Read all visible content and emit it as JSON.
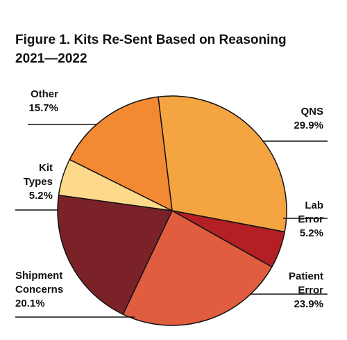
{
  "chart_data": {
    "type": "pie",
    "title": [
      "Figure 1. Kits Re-Sent Based on Reasoning",
      "2021—2022"
    ],
    "slices": [
      {
        "name": "QNS",
        "label_lines": [
          "QNS"
        ],
        "value": 29.9,
        "value_text": "29.9%",
        "color": "#f5a442"
      },
      {
        "name": "Lab Error",
        "label_lines": [
          "Lab",
          "Error"
        ],
        "value": 5.2,
        "value_text": "5.2%",
        "color": "#b31f24"
      },
      {
        "name": "Patient Error",
        "label_lines": [
          "Patient",
          "Error"
        ],
        "value": 23.9,
        "value_text": "23.9%",
        "color": "#e05d40"
      },
      {
        "name": "Shipment Concerns",
        "label_lines": [
          "Shipment",
          "Concerns"
        ],
        "value": 20.1,
        "value_text": "20.1%",
        "color": "#7b2228"
      },
      {
        "name": "Kit Types",
        "label_lines": [
          "Kit",
          "Types"
        ],
        "value": 5.2,
        "value_text": "5.2%",
        "color": "#fdd98a"
      },
      {
        "name": "Other",
        "label_lines": [
          "Other"
        ],
        "value": 15.7,
        "value_text": "15.7%",
        "color": "#f28a33"
      }
    ]
  }
}
